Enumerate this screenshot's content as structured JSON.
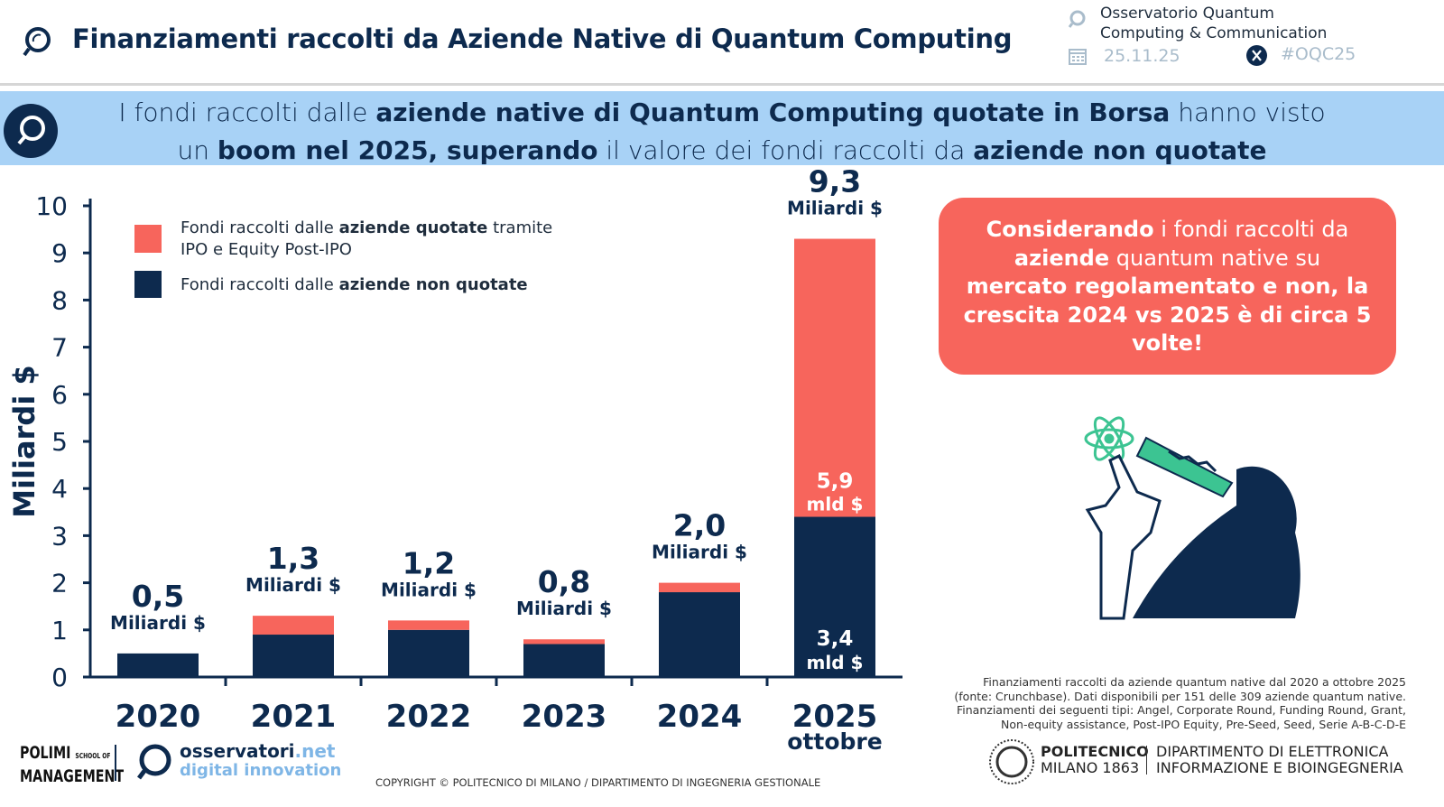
{
  "header": {
    "title": "Finanziamenti raccolti da Aziende Native di Quantum Computing",
    "org_line1": "Osservatorio Quantum",
    "org_line2": "Computing & Communication",
    "date": "25.11.25",
    "hashtag": "#OQC25",
    "icons": [
      "observatory-logo-icon",
      "calendar-icon",
      "x-logo-icon"
    ]
  },
  "banner": {
    "p1": "I fondi raccolti dalle ",
    "b1": "aziende native di Quantum Computing quotate in Borsa",
    "p2": " hanno visto",
    "p3": "un ",
    "b2": "boom nel 2025, superando",
    "p4": " il valore dei fondi raccolti da ",
    "b3": "aziende non quotate"
  },
  "callout": {
    "b1": "Considerando",
    "p1": " i fondi raccolti da ",
    "b2": "aziende",
    "p2": " quantum native su ",
    "b3": "mercato regolamentato e non, la crescita 2024 vs 2025 è di circa 5 volte!"
  },
  "legend": {
    "quoted_p": "Fondi raccolti dalle ",
    "quoted_b": "aziende quotate",
    "quoted_p2": " tramite",
    "quoted_line2": "IPO e Equity Post-IPO",
    "unlisted_p": "Fondi raccolti dalle ",
    "unlisted_b": "aziende non quotate"
  },
  "chart_data": {
    "type": "bar",
    "stacked": true,
    "ylabel": "Miliardi $",
    "ylim": [
      0,
      10
    ],
    "yticks": [
      0,
      1,
      2,
      3,
      4,
      5,
      6,
      7,
      8,
      9,
      10
    ],
    "categories": [
      "2020",
      "2021",
      "2022",
      "2023",
      "2024",
      "2025"
    ],
    "category_sublabels": [
      "",
      "",
      "",
      "",
      "",
      "ottobre"
    ],
    "series": [
      {
        "name": "Fondi raccolti dalle aziende non quotate",
        "color": "#0d2a4e",
        "values": [
          0.5,
          0.9,
          1.0,
          0.7,
          1.8,
          3.4
        ]
      },
      {
        "name": "Fondi raccolti dalle aziende quotate tramite IPO e Equity Post-IPO",
        "color": "#f7655c",
        "values": [
          0,
          0.4,
          0.2,
          0.1,
          0.2,
          5.9
        ]
      }
    ],
    "total_labels": [
      "0,5",
      "1,3",
      "1,2",
      "0,8",
      "2,0",
      "9,3"
    ],
    "total_unit": "Miliardi $",
    "segment_labels_2025": {
      "unlisted": "3,4",
      "quoted": "5,9",
      "unit": "mld $"
    },
    "grid": false
  },
  "footnote": [
    "Finanziamenti raccolti da aziende quantum native dal 2020 a ottobre 2025",
    "(fonte: Crunchbase). Dati disponibili per 151 delle 309 aziende quantum native.",
    "Finanziamenti dei seguenti tipi: Angel, Corporate Round, Funding Round, Grant,",
    "Non-equity assistance, Post-IPO Equity, Pre-Seed, Seed, Serie A-B-C-D-E"
  ],
  "logos": {
    "polimi_1": "POLIMI",
    "polimi_2": "MANAGEMENT",
    "polimi_school": "SCHOOL OF",
    "osservatori_1": "osservatori",
    "osservatori_net": ".net",
    "osservatori_2": "digital innovation",
    "politecnico_1": "POLITECNICO",
    "politecnico_2": "MILANO 1863",
    "dept_1": "DIPARTIMENTO DI ELETTRONICA",
    "dept_2": "INFORMAZIONE E BIOINGEGNERIA"
  },
  "copyright": "COPYRIGHT © POLITECNICO DI MILANO / DIPARTIMENTO DI INGEGNERIA GESTIONALE",
  "colors": {
    "navy": "#0d2a4e",
    "coral": "#f7655c",
    "banner": "#a8d2f6",
    "green": "#3cc492"
  }
}
